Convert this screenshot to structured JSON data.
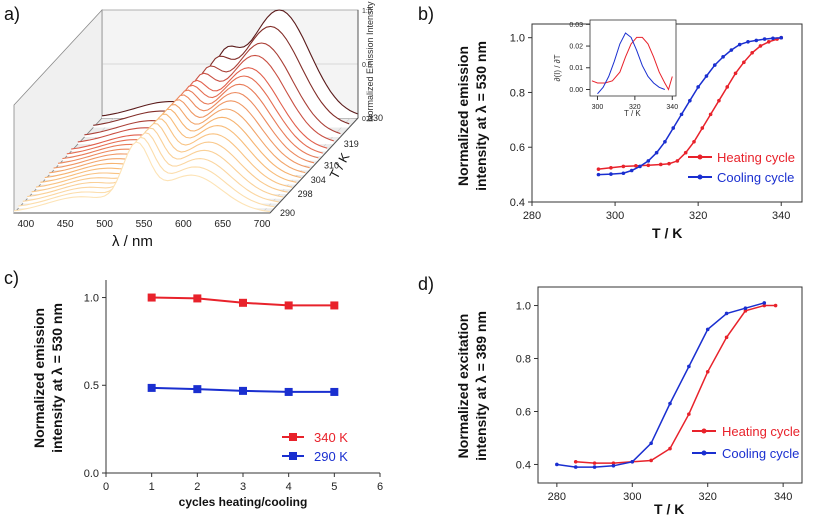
{
  "chart_data": [
    {
      "panel": "a)",
      "type": "line",
      "title": "",
      "xlabel": "λ / nm",
      "ylabel": "Normalized Emission Intensity",
      "zlabel": "T / K",
      "x_ticks": [
        400,
        450,
        500,
        550,
        600,
        650,
        700
      ],
      "t_ticks": [
        290,
        298,
        304,
        310,
        319,
        330
      ],
      "z_ticks": [
        "0.0",
        "0.5",
        "1.0"
      ],
      "temperatures": [
        290,
        292,
        294,
        296,
        298,
        300,
        302,
        304,
        306,
        308,
        310,
        312,
        314,
        316,
        319,
        322,
        326,
        330
      ],
      "colors_cold_to_hot": [
        "#fde3b5",
        "#f7b872",
        "#e05a4a",
        "#5a1a1a"
      ]
    },
    {
      "panel": "b)",
      "type": "line",
      "xlabel": "T / K",
      "ylabel": [
        "Normalized emission",
        "intensity at λ = 530 nm"
      ],
      "xlim": [
        280,
        345
      ],
      "ylim": [
        0.4,
        1.05
      ],
      "x_ticks": [
        280,
        300,
        320,
        340
      ],
      "y_ticks": [
        "0.4",
        "0.6",
        "0.8",
        "1.0"
      ],
      "series": [
        {
          "name": "Heating cycle",
          "color": "#e8222b",
          "x": [
            296,
            299,
            302,
            305,
            308,
            311,
            313,
            315,
            317,
            319,
            321,
            323,
            325,
            327,
            329,
            331,
            333,
            335,
            337,
            339,
            340
          ],
          "y": [
            0.52,
            0.525,
            0.53,
            0.532,
            0.534,
            0.537,
            0.54,
            0.55,
            0.58,
            0.62,
            0.67,
            0.72,
            0.77,
            0.82,
            0.87,
            0.91,
            0.945,
            0.97,
            0.985,
            0.995,
            1.0
          ]
        },
        {
          "name": "Cooling cycle",
          "color": "#1a2fd0",
          "x": [
            296,
            299,
            302,
            304,
            306,
            308,
            310,
            312,
            314,
            316,
            318,
            320,
            322,
            324,
            326,
            328,
            330,
            332,
            334,
            336,
            338,
            340
          ],
          "y": [
            0.5,
            0.502,
            0.505,
            0.515,
            0.53,
            0.55,
            0.58,
            0.62,
            0.67,
            0.72,
            0.77,
            0.82,
            0.86,
            0.9,
            0.93,
            0.955,
            0.975,
            0.985,
            0.99,
            0.995,
            0.998,
            1.0
          ]
        }
      ],
      "inset": {
        "xlabel": "T / K",
        "ylabel": "∂(I) / ∂T",
        "xlim": [
          296,
          342
        ],
        "ylim": [
          -0.003,
          0.032
        ],
        "x_ticks": [
          300,
          320,
          340
        ],
        "y_ticks": [
          "0.00",
          "0.01",
          "0.02",
          "0.03"
        ],
        "series": [
          {
            "name": "heating",
            "color": "#e8222b",
            "x": [
              297,
              300,
              304,
              308,
              312,
              315,
              318,
              321,
              324,
              327,
              330,
              333,
              336,
              338,
              340
            ],
            "y": [
              0.004,
              0.003,
              0.003,
              0.004,
              0.008,
              0.015,
              0.021,
              0.024,
              0.024,
              0.021,
              0.015,
              0.008,
              0.003,
              0.0,
              0.006
            ]
          },
          {
            "name": "cooling",
            "color": "#1a2fd0",
            "x": [
              300,
              303,
              306,
              309,
              312,
              315,
              318,
              321,
              324,
              327,
              330,
              333,
              336
            ],
            "y": [
              -0.002,
              0.001,
              0.006,
              0.013,
              0.021,
              0.026,
              0.024,
              0.018,
              0.011,
              0.006,
              0.003,
              0.001,
              0.0
            ]
          }
        ]
      }
    },
    {
      "panel": "c)",
      "type": "line",
      "xlabel": "cycles heating/cooling",
      "ylabel": [
        "Normalized emission",
        "intensity at λ = 530 nm"
      ],
      "xlim": [
        0,
        6
      ],
      "ylim": [
        0.0,
        1.1
      ],
      "x_ticks": [
        0,
        1,
        2,
        3,
        4,
        5,
        6
      ],
      "y_ticks": [
        "0.0",
        "0.5",
        "1.0"
      ],
      "series": [
        {
          "name": "340 K",
          "color": "#e8222b",
          "x": [
            1,
            2,
            3,
            4,
            5
          ],
          "y": [
            1.0,
            0.995,
            0.97,
            0.955,
            0.955
          ]
        },
        {
          "name": "290 K",
          "color": "#1a2fd0",
          "x": [
            1,
            2,
            3,
            4,
            5
          ],
          "y": [
            0.485,
            0.478,
            0.468,
            0.462,
            0.462
          ]
        }
      ]
    },
    {
      "panel": "d)",
      "type": "line",
      "xlabel": "T / K",
      "ylabel": [
        "Normalized excitation",
        "intensity at λ = 389 nm"
      ],
      "xlim": [
        275,
        345
      ],
      "ylim": [
        0.33,
        1.07
      ],
      "x_ticks": [
        280,
        300,
        320,
        340
      ],
      "y_ticks": [
        "0.4",
        "0.6",
        "0.8",
        "1.0"
      ],
      "series": [
        {
          "name": "Heating cycle",
          "color": "#e8222b",
          "x": [
            285,
            290,
            295,
            300,
            305,
            310,
            315,
            320,
            325,
            330,
            335,
            338
          ],
          "y": [
            0.41,
            0.405,
            0.405,
            0.41,
            0.415,
            0.46,
            0.59,
            0.75,
            0.88,
            0.98,
            1.0,
            1.0
          ]
        },
        {
          "name": "Cooling cycle",
          "color": "#1a2fd0",
          "x": [
            280,
            285,
            290,
            295,
            300,
            305,
            310,
            315,
            320,
            325,
            330,
            335
          ],
          "y": [
            0.4,
            0.39,
            0.39,
            0.395,
            0.41,
            0.48,
            0.63,
            0.77,
            0.91,
            0.97,
            0.99,
            1.01
          ]
        }
      ]
    }
  ]
}
